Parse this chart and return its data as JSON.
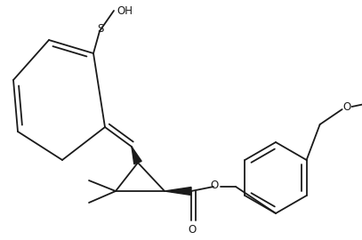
{
  "background": "#ffffff",
  "line_color": "#1a1a1a",
  "line_width": 1.3,
  "fig_width": 4.07,
  "fig_height": 2.7,
  "dpi": 100,
  "xlim": [
    0,
    407
  ],
  "ylim": [
    0,
    270
  ]
}
